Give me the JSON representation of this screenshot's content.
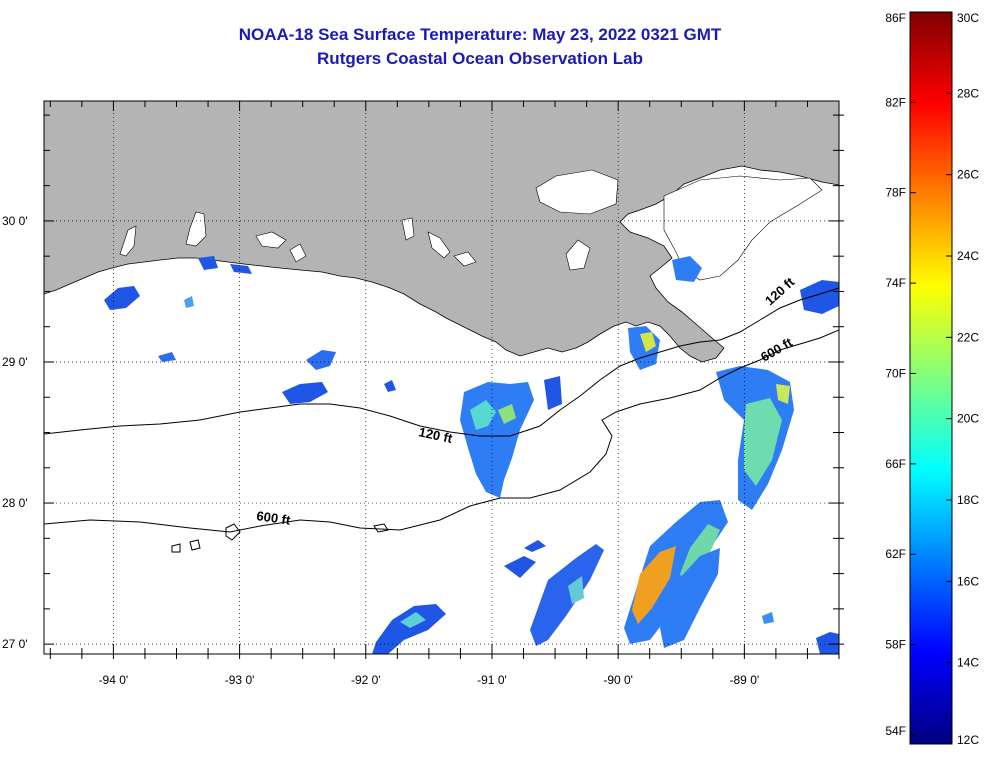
{
  "title": {
    "line1": "NOAA-18 Sea Surface Temperature:  May 23, 2022 0321 GMT",
    "line2": "Rutgers Coastal Ocean Observation Lab"
  },
  "map": {
    "lon_range": [
      -94.55,
      -88.25
    ],
    "lat_range": [
      26.93,
      30.85
    ],
    "lon_ticks": [
      -94,
      -93,
      -92,
      -91,
      -90,
      -89
    ],
    "lon_labels": [
      "-94 0'",
      "-93 0'",
      "-92 0'",
      "-91 0'",
      "-90 0'",
      "-89 0'"
    ],
    "lat_ticks": [
      30,
      29,
      28,
      27
    ],
    "lat_labels": [
      "30 0'",
      "29 0'",
      "28 0'",
      "27 0'"
    ],
    "land_color": "#b4b4b4",
    "isobath_labels": [
      "120 ft",
      "600 ft",
      "120 ft",
      "600 ft"
    ]
  },
  "colorbar": {
    "f_labels": [
      "86F",
      "82F",
      "78F",
      "74F",
      "70F",
      "66F",
      "62F",
      "58F",
      "54F"
    ],
    "c_labels": [
      "30C",
      "28C",
      "26C",
      "24C",
      "22C",
      "20C",
      "18C",
      "16C",
      "14C",
      "12C"
    ],
    "c_range": [
      12,
      30
    ],
    "colors": [
      "#00007f",
      "#0000ff",
      "#007fff",
      "#00ffff",
      "#7fff7f",
      "#ffff00",
      "#ff7f00",
      "#ff0000",
      "#7f0000"
    ]
  }
}
